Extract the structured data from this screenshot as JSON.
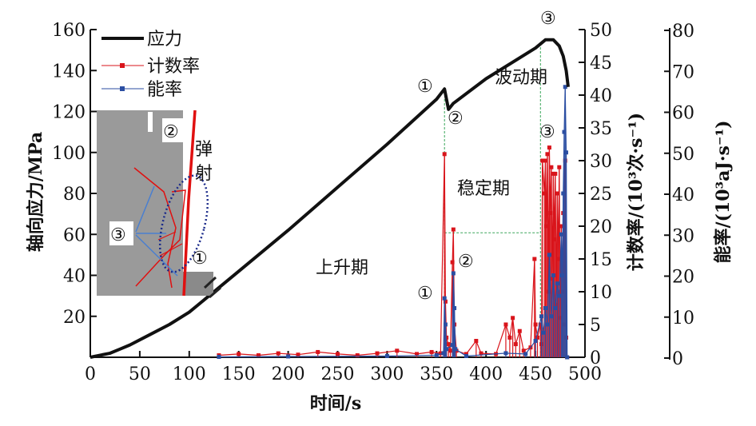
{
  "chart_data": {
    "type": "line",
    "xlabel": "时间/s",
    "ylabel_left": "轴向应力/MPa",
    "ylabel_right1": "计数率/(10³次·s⁻¹)",
    "ylabel_right2": "能率/(10³aJ·s⁻¹)",
    "xlim": [
      0,
      500
    ],
    "ylim_left": [
      0,
      160
    ],
    "ylim_right1": [
      0,
      50
    ],
    "ylim_right2": [
      0,
      80
    ],
    "x_ticks": [
      "0",
      "50",
      "100",
      "150",
      "200",
      "250",
      "300",
      "350",
      "400",
      "450",
      "500"
    ],
    "y_left_ticks": [
      "20",
      "40",
      "60",
      "80",
      "100",
      "120",
      "140",
      "160"
    ],
    "y_right1_ticks": [
      "0",
      "5",
      "10",
      "15",
      "20",
      "25",
      "30",
      "35",
      "40",
      "45",
      "50"
    ],
    "y_right2_ticks": [
      "0",
      "10",
      "20",
      "30",
      "40",
      "50",
      "60",
      "70",
      "80"
    ],
    "legend": [
      {
        "name": "应力",
        "color": "#111111"
      },
      {
        "name": "计数率",
        "color": "#d9141b"
      },
      {
        "name": "能率",
        "color": "#2b4ea2"
      }
    ],
    "legend_position": "top-left",
    "series": [
      {
        "name": "应力",
        "axis": "left",
        "color": "#111111",
        "points": [
          [
            0,
            0
          ],
          [
            10,
            1
          ],
          [
            20,
            2
          ],
          [
            30,
            4
          ],
          [
            40,
            6
          ],
          [
            60,
            11
          ],
          [
            80,
            16
          ],
          [
            100,
            22
          ],
          [
            150,
            42
          ],
          [
            200,
            62
          ],
          [
            250,
            83
          ],
          [
            300,
            104
          ],
          [
            350,
            126
          ],
          [
            358,
            131
          ],
          [
            362,
            121
          ],
          [
            367,
            124
          ],
          [
            400,
            136
          ],
          [
            450,
            151
          ],
          [
            460,
            155
          ],
          [
            468,
            155
          ],
          [
            474,
            152
          ],
          [
            478,
            147
          ],
          [
            481,
            140
          ],
          [
            483,
            132
          ]
        ]
      },
      {
        "name": "计数率",
        "axis": "right1",
        "color": "#d9141b",
        "points": [
          [
            130,
            0.3
          ],
          [
            150,
            0.5
          ],
          [
            170,
            0.3
          ],
          [
            190,
            0.6
          ],
          [
            210,
            0.4
          ],
          [
            230,
            0.8
          ],
          [
            250,
            0.5
          ],
          [
            270,
            0.3
          ],
          [
            290,
            0.6
          ],
          [
            310,
            1.0
          ],
          [
            330,
            0.5
          ],
          [
            345,
            0.8
          ],
          [
            354,
            0.6
          ],
          [
            358,
            31
          ],
          [
            359,
            8.5
          ],
          [
            360,
            3
          ],
          [
            362,
            2
          ],
          [
            364,
            1
          ],
          [
            366,
            14.5
          ],
          [
            367,
            19.5
          ],
          [
            368,
            5
          ],
          [
            370,
            1
          ],
          [
            380,
            0.5
          ],
          [
            390,
            2.5
          ],
          [
            395,
            0.6
          ],
          [
            410,
            0.5
          ],
          [
            420,
            5
          ],
          [
            424,
            3
          ],
          [
            427,
            6
          ],
          [
            430,
            2
          ],
          [
            434,
            4
          ],
          [
            438,
            1
          ],
          [
            445,
            1.5
          ],
          [
            449,
            15
          ],
          [
            450,
            5
          ],
          [
            452,
            3
          ],
          [
            455,
            5
          ],
          [
            456,
            2
          ],
          [
            457,
            30
          ],
          [
            459,
            25
          ],
          [
            460,
            30
          ],
          [
            461,
            20
          ],
          [
            462,
            31
          ],
          [
            463,
            10
          ],
          [
            464,
            32
          ],
          [
            465,
            22
          ],
          [
            466,
            29
          ],
          [
            467,
            12
          ],
          [
            468,
            28
          ],
          [
            469,
            18
          ],
          [
            470,
            28
          ],
          [
            471,
            8
          ],
          [
            472,
            25
          ],
          [
            473,
            15
          ],
          [
            474,
            29
          ],
          [
            475,
            6
          ],
          [
            476,
            20
          ],
          [
            477,
            10
          ],
          [
            478,
            22
          ],
          [
            479,
            5
          ],
          [
            480,
            30
          ],
          [
            481,
            3
          ],
          [
            482,
            0
          ]
        ]
      },
      {
        "name": "能率",
        "axis": "right2",
        "color": "#2b4ea2",
        "points": [
          [
            130,
            0.1
          ],
          [
            200,
            0.2
          ],
          [
            300,
            0.3
          ],
          [
            350,
            0.5
          ],
          [
            357,
            1
          ],
          [
            358,
            14.4
          ],
          [
            359,
            8
          ],
          [
            360,
            2
          ],
          [
            366,
            3
          ],
          [
            367,
            20.5
          ],
          [
            368,
            12
          ],
          [
            369,
            2
          ],
          [
            380,
            0.3
          ],
          [
            420,
            1
          ],
          [
            440,
            0.8
          ],
          [
            450,
            4
          ],
          [
            456,
            10
          ],
          [
            458,
            6
          ],
          [
            460,
            12
          ],
          [
            462,
            8
          ],
          [
            464,
            25
          ],
          [
            466,
            10
          ],
          [
            468,
            20
          ],
          [
            470,
            12
          ],
          [
            472,
            18
          ],
          [
            474,
            15
          ],
          [
            476,
            30
          ],
          [
            477,
            20
          ],
          [
            478,
            40
          ],
          [
            479,
            55
          ],
          [
            480,
            66
          ],
          [
            481,
            50
          ],
          [
            482,
            0
          ]
        ]
      }
    ],
    "annotations": {
      "stage_rise": "上升期",
      "stage_stable": "稳定期",
      "stage_fluct": "波动期",
      "c1": "①",
      "c2": "②",
      "c3": "③",
      "inset_c1": "①",
      "inset_c2": "②",
      "inset_c3": "③",
      "inset_eject": "弹射"
    }
  }
}
